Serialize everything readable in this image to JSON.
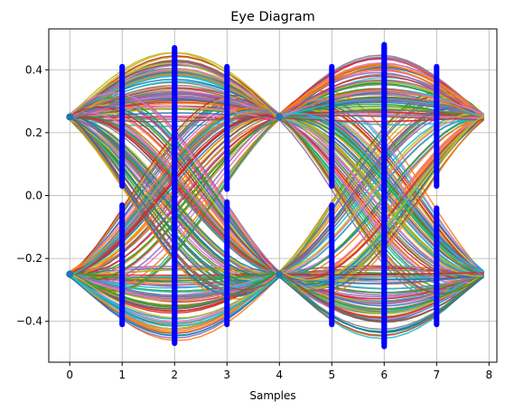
{
  "chart_data": {
    "type": "line",
    "title": "Eye Diagram",
    "xlabel": "Samples",
    "ylabel": "",
    "xlim": [
      -0.4,
      8.15
    ],
    "ylim": [
      -0.53,
      0.53
    ],
    "xticks": [
      0,
      1,
      2,
      3,
      4,
      5,
      6,
      7,
      8
    ],
    "yticks": [
      -0.4,
      -0.2,
      0.0,
      0.2,
      0.4
    ],
    "ytick_labels": [
      "−0.4",
      "−0.2",
      "0.0",
      "0.2",
      "0.4"
    ],
    "grid": true,
    "legend": "none",
    "symbol_levels": [
      0.25,
      -0.25
    ],
    "peak_amplitude": 0.47,
    "trace_count_estimate": "hundreds",
    "sample_marker_color": "#0000ff",
    "sample_columns": [
      1,
      2,
      3,
      5,
      6,
      7
    ],
    "sample_column_ranges": [
      {
        "x": 1,
        "upper": [
          0.03,
          0.41
        ],
        "lower": [
          -0.41,
          -0.03
        ]
      },
      {
        "x": 2,
        "upper": [
          -0.46,
          0.47
        ],
        "lower": [
          -0.47,
          0.46
        ]
      },
      {
        "x": 3,
        "upper": [
          0.02,
          0.41
        ],
        "lower": [
          -0.41,
          -0.02
        ]
      },
      {
        "x": 5,
        "upper": [
          0.03,
          0.41
        ],
        "lower": [
          -0.41,
          -0.03
        ]
      },
      {
        "x": 6,
        "upper": [
          -0.47,
          0.48
        ],
        "lower": [
          -0.48,
          0.47
        ]
      },
      {
        "x": 7,
        "upper": [
          0.03,
          0.41
        ],
        "lower": [
          -0.41,
          -0.04
        ]
      }
    ],
    "palette": [
      "#1f77b4",
      "#ff7f0e",
      "#2ca02c",
      "#d62728",
      "#9467bd",
      "#8c564b",
      "#e377c2",
      "#7f7f7f",
      "#bcbd22",
      "#17becf"
    ]
  }
}
